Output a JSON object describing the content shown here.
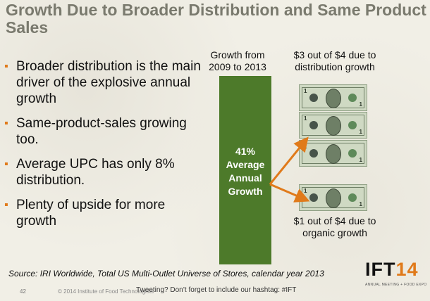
{
  "title": "Growth Due to Broader Distribution and Same Product Sales",
  "bullets": [
    {
      "text": "Broader distribution is the main driver of the explosive annual growth"
    },
    {
      "text": "Same-product-sales growing too."
    },
    {
      "text": "Average UPC has only 8% distribution."
    },
    {
      "text": "Plenty of upside for more growth"
    }
  ],
  "bullet_marker": "▪",
  "bar": {
    "header": "Growth from 2009  to 2013",
    "label": "41% Average Annual Growth",
    "color": "#4d7a2a"
  },
  "top_caption": "$3 out of $4 due to distribution growth",
  "bottom_caption": "$1 out of $4 due to organic growth",
  "bill_number": "1",
  "source": "Source: IRI Worldwide,  Total US  Multi-Outlet Universe of Stores, calendar year 2013",
  "footer": {
    "page_number": "42",
    "copyright": "© 2014 Institute of Food Technologists",
    "tweet": "Tweeting? Don’t forget to include our hashtag: #IFT"
  },
  "logo": {
    "text_a": "IFT",
    "text_b": "14",
    "tagline": "ANNUAL MEETING + FOOD EXPO"
  },
  "colors": {
    "accent": "#e07a1a",
    "title": "#7a7a6e"
  }
}
